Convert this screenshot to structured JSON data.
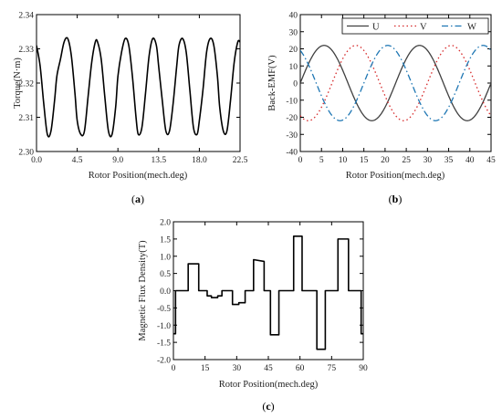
{
  "chart_data": [
    {
      "type": "line",
      "panel_label": "a",
      "xlabel": "Rotor Position(mech.deg)",
      "ylabel": "Torque(N·m)",
      "xlim": [
        0,
        22.5
      ],
      "ylim": [
        2.3,
        2.34
      ],
      "xticks": [
        "0.0",
        "4.5",
        "9.0",
        "13.5",
        "18.0",
        "22.5"
      ],
      "yticks": [
        "2.30",
        "2.31",
        "2.32",
        "2.33",
        "2.34"
      ],
      "grid": false,
      "series": [
        {
          "color": "#000000",
          "x": [
            0,
            0.4,
            0.8,
            1.2,
            1.6,
            2.0,
            2.25,
            2.65,
            3.05,
            3.45,
            3.85,
            4.25,
            4.5,
            4.9,
            5.3,
            5.7,
            6.1,
            6.5,
            6.75,
            7.15,
            7.55,
            7.95,
            8.35,
            8.75,
            9.0,
            9.4,
            9.8,
            10.2,
            10.6,
            11.0,
            11.25,
            11.65,
            12.05,
            12.45,
            12.85,
            13.25,
            13.5,
            13.9,
            14.3,
            14.7,
            15.1,
            15.5,
            15.75,
            16.15,
            16.55,
            16.95,
            17.35,
            17.75,
            18.0,
            18.4,
            18.8,
            19.2,
            19.6,
            20.0,
            20.25,
            20.65,
            21.05,
            21.45,
            21.85,
            22.25,
            22.5
          ],
          "y": [
            2.331,
            2.325,
            2.314,
            2.305,
            2.306,
            2.315,
            2.322,
            2.327,
            2.332,
            2.333,
            2.328,
            2.317,
            2.309,
            2.305,
            2.306,
            2.316,
            2.326,
            2.332,
            2.332,
            2.327,
            2.316,
            2.306,
            2.305,
            2.313,
            2.322,
            2.329,
            2.333,
            2.331,
            2.322,
            2.31,
            2.305,
            2.307,
            2.317,
            2.328,
            2.333,
            2.331,
            2.325,
            2.315,
            2.306,
            2.306,
            2.314,
            2.325,
            2.331,
            2.333,
            2.329,
            2.318,
            2.307,
            2.305,
            2.309,
            2.318,
            2.329,
            2.333,
            2.331,
            2.322,
            2.313,
            2.306,
            2.306,
            2.315,
            2.326,
            2.332,
            2.332
          ]
        }
      ]
    },
    {
      "type": "line",
      "panel_label": "b",
      "xlabel": "Rotor Position(mech.deg)",
      "ylabel": "Back-EMF(V)",
      "xlim": [
        0,
        45
      ],
      "ylim": [
        -40,
        40
      ],
      "xticks": [
        "0",
        "5",
        "10",
        "15",
        "20",
        "25",
        "30",
        "35",
        "40",
        "45"
      ],
      "yticks": [
        "-40",
        "-30",
        "-20",
        "-10",
        "0",
        "10",
        "20",
        "30",
        "40"
      ],
      "grid": false,
      "legend": "top-right",
      "series": [
        {
          "name": "U",
          "color": "#404040",
          "dash": "solid",
          "amplitude": 22,
          "period": 22.5,
          "phase_deg": 0
        },
        {
          "name": "V",
          "color": "#d62728",
          "dash": "dot",
          "amplitude": 22,
          "period": 22.5,
          "phase_deg": -120
        },
        {
          "name": "W",
          "color": "#1f77b4",
          "dash": "dashdot",
          "amplitude": 22,
          "period": 22.5,
          "phase_deg": 120
        }
      ]
    },
    {
      "type": "line",
      "panel_label": "c",
      "xlabel": "Rotor Position(mech.deg)",
      "ylabel": "Magnetic Flux Density(T)",
      "xlim": [
        0,
        90
      ],
      "ylim": [
        -2.0,
        2.0
      ],
      "xticks": [
        "0",
        "15",
        "30",
        "45",
        "60",
        "75",
        "90"
      ],
      "yticks": [
        "-2.0",
        "-1.5",
        "-1.0",
        "-0.5",
        "0.0",
        "0.5",
        "1.0",
        "1.5",
        "2.0"
      ],
      "grid": false,
      "series": [
        {
          "color": "#000000",
          "x": [
            0,
            1,
            1,
            4,
            4,
            7,
            7,
            12,
            12,
            16,
            16,
            18,
            18,
            21,
            21,
            23,
            23,
            26,
            26,
            28,
            28,
            31,
            31,
            34,
            34,
            38,
            38,
            43,
            43,
            46,
            46,
            50,
            50,
            53,
            53,
            57,
            57,
            61,
            61,
            65,
            65,
            68,
            68,
            72,
            72,
            75,
            75,
            78,
            78,
            83,
            83,
            86,
            86,
            89,
            89,
            90
          ],
          "y": [
            -1.25,
            -1.25,
            0.0,
            0.0,
            0.0,
            0.0,
            0.78,
            0.78,
            0.0,
            0.0,
            -0.15,
            -0.15,
            -0.2,
            -0.2,
            -0.15,
            -0.15,
            0.0,
            0.0,
            0.0,
            0.0,
            -0.4,
            -0.4,
            -0.35,
            -0.35,
            0.0,
            0.0,
            0.9,
            0.85,
            0.0,
            0.0,
            -1.28,
            -1.28,
            0.0,
            0.0,
            0.0,
            0.0,
            1.58,
            1.58,
            0.0,
            0.0,
            0.0,
            0.0,
            -1.7,
            -1.7,
            0.0,
            0.0,
            0.0,
            0.0,
            1.5,
            1.5,
            0.0,
            0.0,
            0.0,
            0.0,
            -1.25,
            -1.25
          ]
        }
      ]
    }
  ]
}
